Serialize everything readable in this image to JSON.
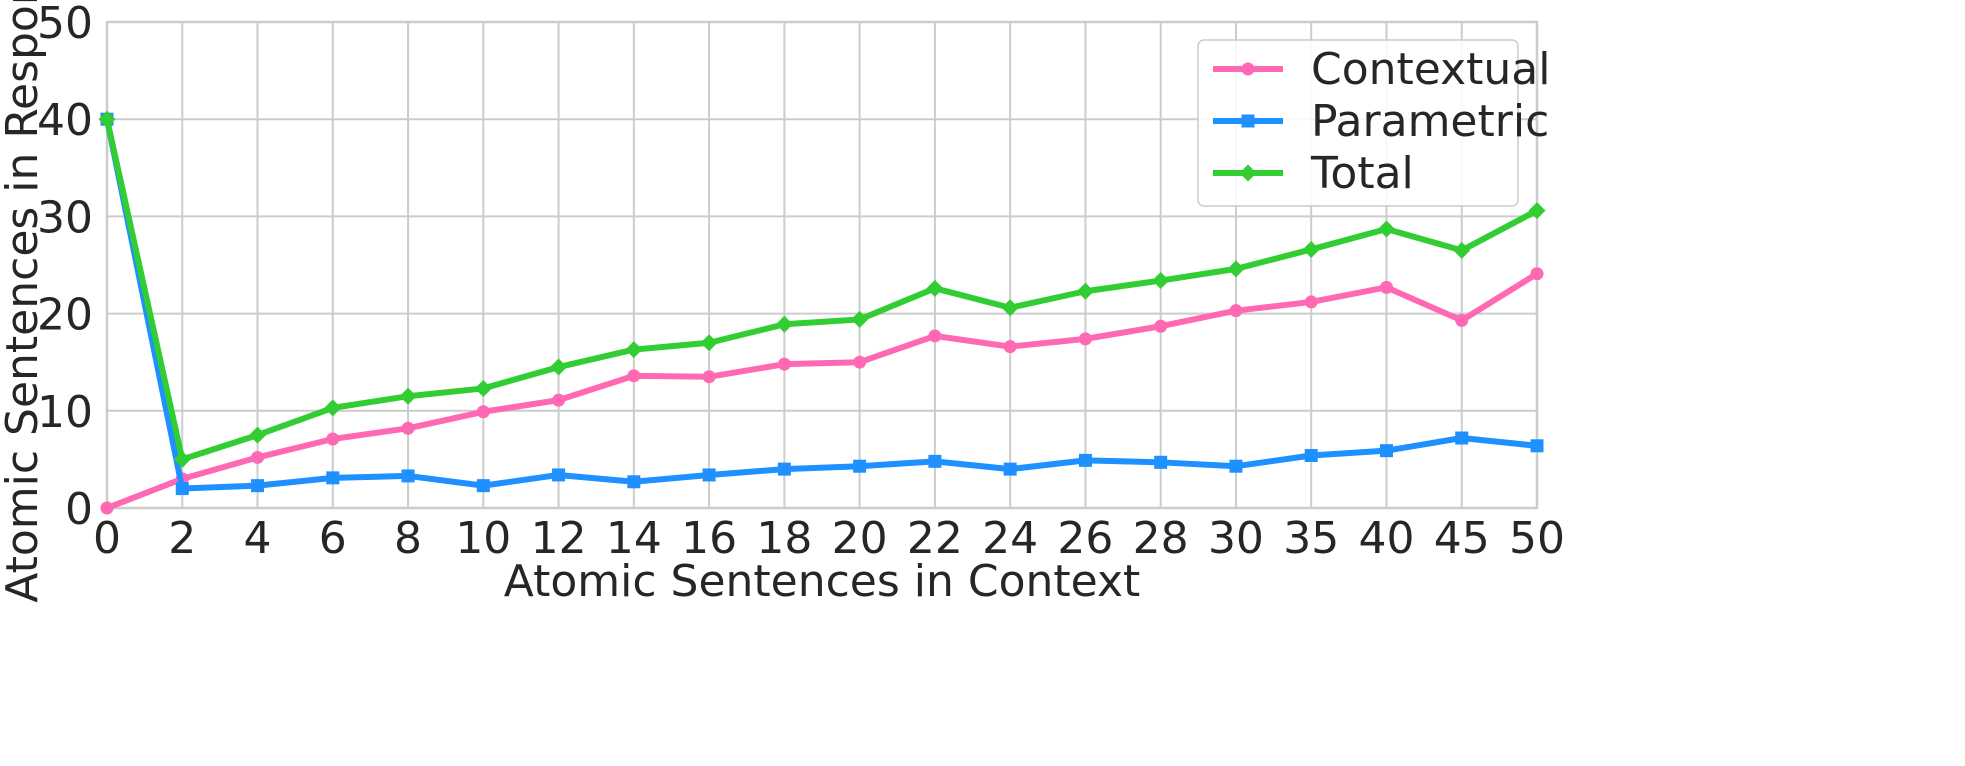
{
  "chart_data": {
    "type": "line",
    "xlabel": "Atomic Sentences in Context",
    "ylabel": "Atomic Sentences in Response",
    "categories": [
      "0",
      "2",
      "4",
      "6",
      "8",
      "10",
      "12",
      "14",
      "16",
      "18",
      "20",
      "22",
      "24",
      "26",
      "28",
      "30",
      "35",
      "40",
      "45",
      "50"
    ],
    "ylim": [
      0,
      50
    ],
    "yticks": [
      "0",
      "10",
      "20",
      "30",
      "40",
      "50"
    ],
    "grid": true,
    "legend_position": "top-right",
    "series": [
      {
        "name": "Contextual",
        "color": "#ff69b4",
        "marker": "circle",
        "values": [
          0,
          3.0,
          5.2,
          7.1,
          8.2,
          9.9,
          11.1,
          13.6,
          13.5,
          14.8,
          15.0,
          17.7,
          16.6,
          17.4,
          18.7,
          20.3,
          21.2,
          22.7,
          19.3,
          24.1
        ]
      },
      {
        "name": "Parametric",
        "color": "#1e90ff",
        "marker": "square",
        "values": [
          40,
          2.0,
          2.3,
          3.1,
          3.3,
          2.3,
          3.4,
          2.7,
          3.4,
          4.0,
          4.3,
          4.8,
          4.0,
          4.9,
          4.7,
          4.3,
          5.4,
          5.9,
          7.2,
          6.4
        ]
      },
      {
        "name": "Total",
        "color": "#32cd32",
        "marker": "diamond",
        "values": [
          40,
          5.0,
          7.5,
          10.3,
          11.5,
          12.3,
          14.5,
          16.3,
          17.0,
          18.9,
          19.4,
          22.6,
          20.6,
          22.3,
          23.4,
          24.6,
          26.6,
          28.7,
          26.5,
          30.6
        ]
      }
    ]
  }
}
